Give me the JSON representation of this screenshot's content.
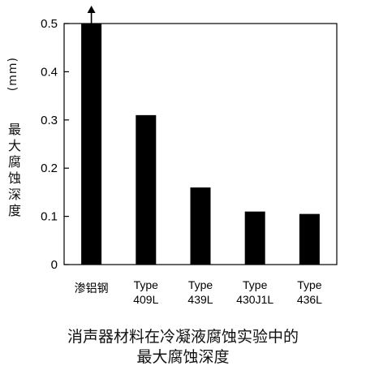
{
  "chart_data": {
    "type": "bar",
    "categories": [
      "渗铝钢",
      "Type\n409L",
      "Type\n439L",
      "Type\n430J1L",
      "Type\n436L"
    ],
    "values": [
      0.5,
      0.31,
      0.16,
      0.11,
      0.105
    ],
    "truncated": [
      true,
      false,
      false,
      false,
      false
    ],
    "ylim": [
      0,
      0.5
    ],
    "yticks": [
      "0",
      "0.1",
      "0.2",
      "0.3",
      "0.4",
      "0.5"
    ],
    "ylabel_unit": "(mm)",
    "ylabel": "最大腐蚀深度",
    "bar_color": "#000000",
    "grid": false,
    "title_lines": [
      "消声器材料在冷凝液腐蚀实验中的",
      "最大腐蚀深度"
    ]
  }
}
